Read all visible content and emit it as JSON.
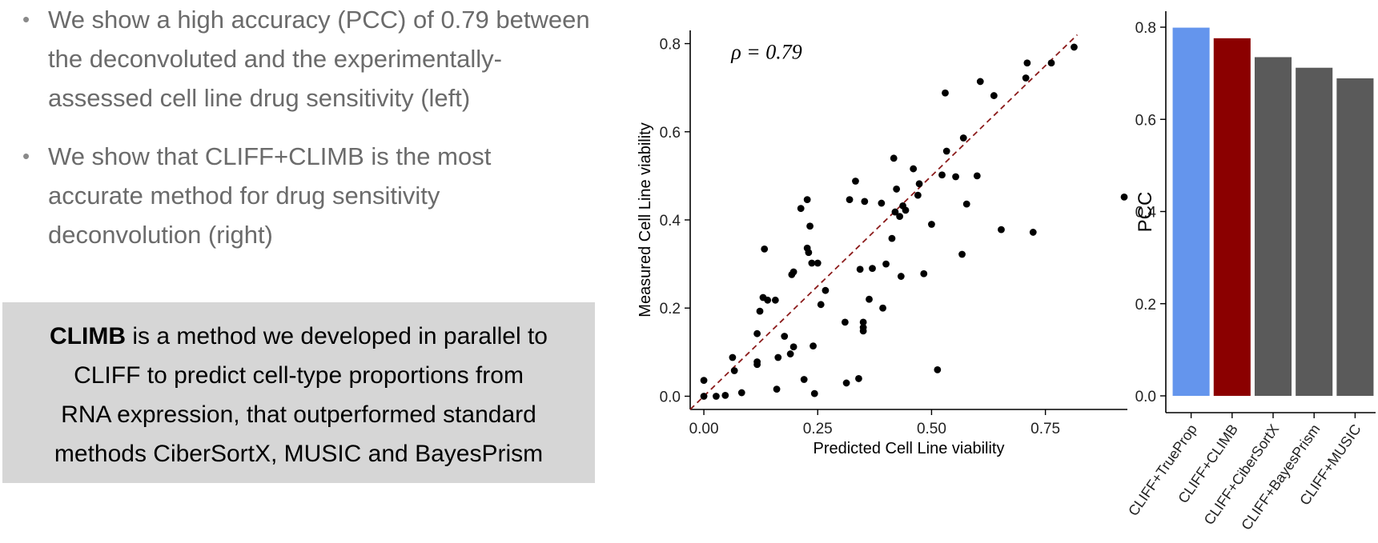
{
  "bullets": [
    {
      "lines": [
        "We show a high accuracy (PCC) of 0.79 between",
        "the deconvoluted and the experimentally-",
        "assessed cell line drug sensitivity (left)"
      ]
    },
    {
      "lines": [
        "We show that CLIFF+CLIMB is the most",
        "accurate method for drug sensitivity",
        "deconvolution (right)"
      ]
    }
  ],
  "infobox": {
    "bold": "CLIMB",
    "line1_rest": " is a method we developed in parallel to",
    "line2": "CLIFF to predict cell-type proportions from",
    "line3": "RNA expression, that outperformed standard",
    "line4": "methods CiberSortX, MUSIC and BayesPrism"
  },
  "chart_data": [
    {
      "type": "scatter",
      "xlabel": "Predicted Cell Line viability",
      "ylabel": "Measured Cell Line viability",
      "xlim": [
        -0.03,
        0.93
      ],
      "ylim": [
        -0.03,
        0.83
      ],
      "xticks": [
        0.0,
        0.25,
        0.5,
        0.75
      ],
      "xtick_labels": [
        "0.00",
        "0.25",
        "0.50",
        "0.75"
      ],
      "yticks": [
        0.0,
        0.2,
        0.4,
        0.6,
        0.8
      ],
      "ytick_labels": [
        "0.0",
        "0.2",
        "0.4",
        "0.6",
        "0.8"
      ],
      "annotation": {
        "text": "ρ = 0.79",
        "x": 0.06,
        "y": 0.78
      },
      "reference_line": {
        "type": "identity",
        "color": "#8b1a1a",
        "style": "dashed"
      },
      "grid": false,
      "point_color": "#000000",
      "points": [
        [
          0.0,
          0.036
        ],
        [
          0.0,
          0.0
        ],
        [
          0.027,
          0.0
        ],
        [
          0.047,
          0.002
        ],
        [
          0.083,
          0.008
        ],
        [
          0.063,
          0.088
        ],
        [
          0.067,
          0.058
        ],
        [
          0.117,
          0.078
        ],
        [
          0.117,
          0.072
        ],
        [
          0.117,
          0.142
        ],
        [
          0.123,
          0.193
        ],
        [
          0.13,
          0.224
        ],
        [
          0.14,
          0.218
        ],
        [
          0.157,
          0.218
        ],
        [
          0.16,
          0.016
        ],
        [
          0.163,
          0.088
        ],
        [
          0.177,
          0.136
        ],
        [
          0.19,
          0.096
        ],
        [
          0.193,
          0.276
        ],
        [
          0.197,
          0.282
        ],
        [
          0.197,
          0.112
        ],
        [
          0.213,
          0.426
        ],
        [
          0.22,
          0.038
        ],
        [
          0.227,
          0.446
        ],
        [
          0.227,
          0.336
        ],
        [
          0.23,
          0.326
        ],
        [
          0.233,
          0.386
        ],
        [
          0.237,
          0.302
        ],
        [
          0.24,
          0.114
        ],
        [
          0.243,
          0.006
        ],
        [
          0.25,
          0.302
        ],
        [
          0.257,
          0.208
        ],
        [
          0.267,
          0.24
        ],
        [
          0.133,
          0.334
        ],
        [
          0.31,
          0.168
        ],
        [
          0.313,
          0.03
        ],
        [
          0.32,
          0.446
        ],
        [
          0.333,
          0.488
        ],
        [
          0.34,
          0.04
        ],
        [
          0.343,
          0.288
        ],
        [
          0.35,
          0.168
        ],
        [
          0.35,
          0.148
        ],
        [
          0.353,
          0.442
        ],
        [
          0.363,
          0.22
        ],
        [
          0.37,
          0.29
        ],
        [
          0.35,
          0.156
        ],
        [
          0.39,
          0.438
        ],
        [
          0.393,
          0.2
        ],
        [
          0.4,
          0.3
        ],
        [
          0.413,
          0.358
        ],
        [
          0.417,
          0.54
        ],
        [
          0.42,
          0.418
        ],
        [
          0.423,
          0.47
        ],
        [
          0.43,
          0.408
        ],
        [
          0.433,
          0.272
        ],
        [
          0.437,
          0.432
        ],
        [
          0.443,
          0.422
        ],
        [
          0.46,
          0.516
        ],
        [
          0.473,
          0.482
        ],
        [
          0.47,
          0.456
        ],
        [
          0.483,
          0.278
        ],
        [
          0.5,
          0.39
        ],
        [
          0.513,
          0.06
        ],
        [
          0.523,
          0.502
        ],
        [
          0.53,
          0.688
        ],
        [
          0.533,
          0.556
        ],
        [
          0.553,
          0.498
        ],
        [
          0.567,
          0.322
        ],
        [
          0.57,
          0.586
        ],
        [
          0.577,
          0.436
        ],
        [
          0.6,
          0.5
        ],
        [
          0.607,
          0.714
        ],
        [
          0.637,
          0.682
        ],
        [
          0.653,
          0.378
        ],
        [
          0.707,
          0.722
        ],
        [
          0.71,
          0.756
        ],
        [
          0.723,
          0.372
        ],
        [
          0.763,
          0.756
        ],
        [
          0.813,
          0.792
        ],
        [
          0.923,
          0.452
        ]
      ]
    },
    {
      "type": "bar",
      "ylabel": "PCC",
      "ylim": [
        0,
        0.8
      ],
      "yticks": [
        0.0,
        0.2,
        0.4,
        0.6,
        0.8
      ],
      "ytick_labels": [
        "0.0",
        "0.2",
        "0.4",
        "0.6",
        "0.8"
      ],
      "categories": [
        "CLIFF+TrueProp",
        "CLIFF+CLIMB",
        "CLIFF+CiberSortX",
        "CLIFF+BayesPrism",
        "CLIFF+MUSIC"
      ],
      "values": [
        0.799,
        0.776,
        0.735,
        0.712,
        0.689
      ],
      "colors": [
        "#6495ed",
        "#8b0000",
        "#5a5a5a",
        "#5a5a5a",
        "#5a5a5a"
      ],
      "grid": false
    }
  ]
}
